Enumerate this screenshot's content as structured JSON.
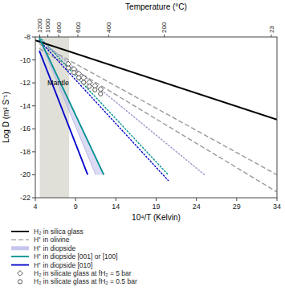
{
  "chart_data": {
    "type": "line",
    "x_label": "10⁴/T (Kelvin)",
    "y_label": "Log D (m² S⁻¹)",
    "x2_label": "Temperature (°C)",
    "xlim": [
      4,
      34
    ],
    "xticks": [
      4,
      9,
      14,
      19,
      24,
      29,
      34
    ],
    "ylim": [
      -22,
      -8
    ],
    "yticks": [
      -22,
      -20,
      -18,
      -16,
      -14,
      -12,
      -10,
      -8
    ],
    "x2lim": [
      4,
      34
    ],
    "x2ticks": [
      {
        "value": 4.55,
        "label": "1200"
      },
      {
        "value": 5.56,
        "label": "1000"
      },
      {
        "value": 6.9,
        "label": "800"
      },
      {
        "value": 9.28,
        "label": "600"
      },
      {
        "value": 13.1,
        "label": "400"
      },
      {
        "value": 20.0,
        "label": "200"
      },
      {
        "value": 33.3,
        "label": "23"
      }
    ],
    "grid": false,
    "legend": "bottom",
    "spans": [
      {
        "xmin": 4.55,
        "xmax": 8.2,
        "color": "#e0dfd8"
      }
    ],
    "annotations": [
      {
        "text": "Mantle",
        "x": 5.5,
        "y": -12.2
      }
    ],
    "series": [
      {
        "name": "H₂ in silica glass",
        "type": "line",
        "color": "#000000",
        "line_style": "solid",
        "x": [
          4,
          34
        ],
        "values": [
          -8.3,
          -15.2
        ]
      },
      {
        "name": "H⁺ in olivine",
        "type": "line",
        "color": "#999999",
        "line_style": "dashed",
        "x": [
          4.5,
          34
        ],
        "values": [
          -9.0,
          -21.5
        ]
      },
      {
        "type": "line",
        "color": "#999999",
        "line_style": "dashed",
        "x": [
          4.5,
          34
        ],
        "values": [
          -8.6,
          -20.0
        ]
      },
      {
        "name": "H⁺ in diopside",
        "type": "band",
        "color": "#b8b8e8",
        "line_style": "solid",
        "x": [
          4.5,
          11.5
        ],
        "values": [
          -8.2,
          -20.0
        ],
        "x2": [
          4.5,
          12.5
        ],
        "values2": [
          -8.2,
          -20.0
        ]
      },
      {
        "name": "H⁺ in diopside [001] or [100]",
        "type": "line",
        "color": "#009090",
        "line_style": "solid",
        "x": [
          4.5,
          12.5
        ],
        "values": [
          -8.1,
          -20.0
        ]
      },
      {
        "name": "H⁺ in diopside [010]",
        "type": "line",
        "color": "#0000cc",
        "line_style": "solid",
        "x": [
          4.5,
          10.5
        ],
        "values": [
          -9.2,
          -20.0
        ]
      },
      {
        "type": "line",
        "color": "#009090",
        "line_style": "dotted",
        "x": [
          4.5,
          20.5
        ],
        "values": [
          -8.0,
          -20.0
        ]
      },
      {
        "type": "line",
        "color": "#0000cc",
        "line_style": "dotted",
        "x": [
          4.5,
          20.5
        ],
        "values": [
          -8.3,
          -20.5
        ]
      },
      {
        "type": "line",
        "color": "#9999cc",
        "line_style": "dotted",
        "x": [
          4.5,
          25.0
        ],
        "values": [
          -8.2,
          -20.0
        ]
      },
      {
        "name": "H₂ in silicate glass at fH₂ = 5 bar",
        "type": "scatter",
        "marker": "diamond",
        "color": "#555555",
        "x": [
          8.1,
          8.8,
          9.4,
          10.0,
          10.7,
          11.4,
          12.1
        ],
        "values": [
          -10.35,
          -10.8,
          -11.2,
          -11.55,
          -11.95,
          -12.25,
          -12.55
        ]
      },
      {
        "name": "H₂ in silicate glass at fH₂ = 0.5 bar",
        "type": "scatter",
        "marker": "circle",
        "color": "#555555",
        "x": [
          8.1,
          8.8,
          9.4,
          10.0,
          10.7,
          11.4,
          12.1
        ],
        "values": [
          -10.7,
          -11.1,
          -11.55,
          -11.95,
          -12.3,
          -12.6,
          -12.95
        ]
      }
    ]
  }
}
